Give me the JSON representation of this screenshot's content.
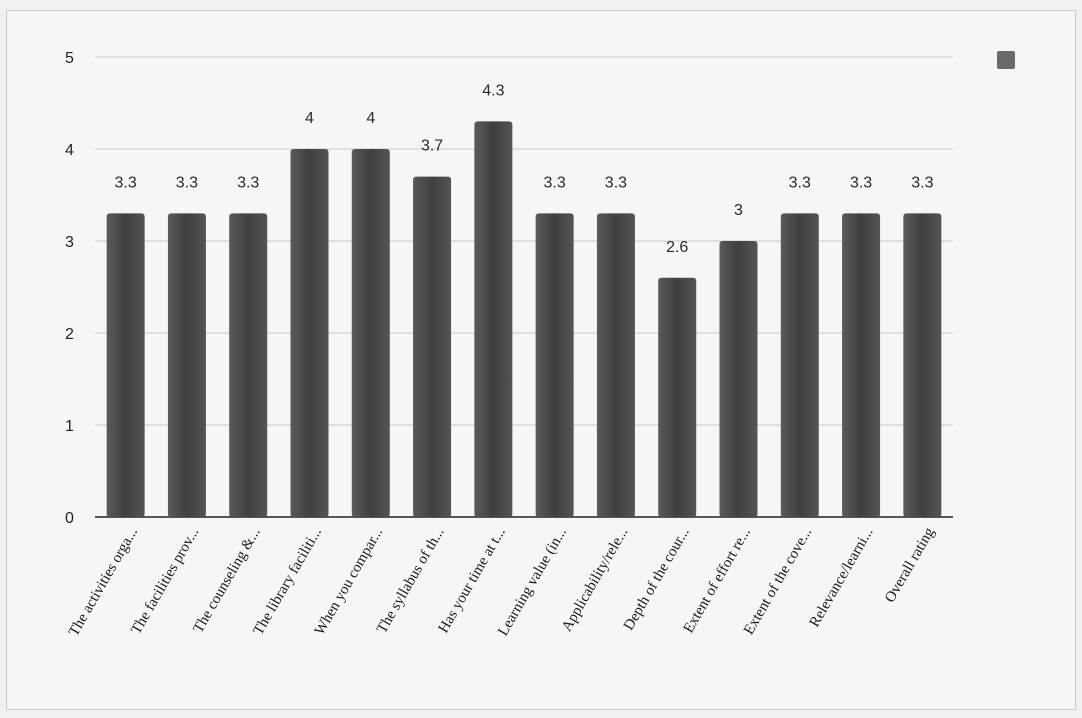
{
  "chart_data": {
    "type": "bar",
    "categories": [
      "The activities orga...",
      "The facilities prov...",
      "The counseling &...",
      "The library faciliti...",
      "When you compar...",
      "The syllabus of th...",
      "Has your time at t...",
      "Learning value (in...",
      "Applicability/rele...",
      "Depth of the cour...",
      "Extent of effort re...",
      "Extent of the cove...",
      "Relevance/learni...",
      "Overall rating"
    ],
    "values": [
      3.3,
      3.3,
      3.3,
      4,
      4,
      3.7,
      4.3,
      3.3,
      3.3,
      2.6,
      3,
      3.3,
      3.3,
      3.3
    ],
    "data_labels": [
      "3.3",
      "3.3",
      "3.3",
      "4",
      "4",
      "3.7",
      "4.3",
      "3.3",
      "3.3",
      "2.6",
      "3",
      "3.3",
      "3.3",
      "3.3"
    ],
    "ylim": [
      0,
      5
    ],
    "yticks": [
      "0",
      "1",
      "2",
      "3",
      "4",
      "5"
    ],
    "title": "",
    "xlabel": "",
    "ylabel": "",
    "grid": true,
    "legend": "top-right",
    "colors": {
      "bar": "#4e4e4e",
      "legend_swatch": "#6a6a6a",
      "grid": "#c8c8c6",
      "axis": "#222222"
    }
  }
}
